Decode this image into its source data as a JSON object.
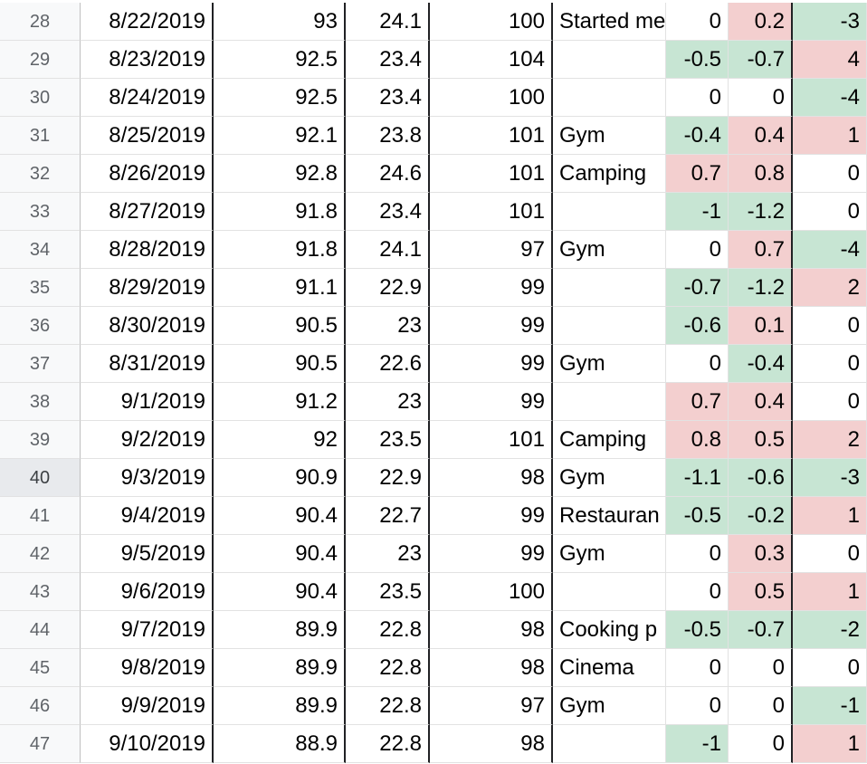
{
  "colors": {
    "positive": "#f3cfcf",
    "negative": "#c7e5d3"
  },
  "rows": [
    {
      "n": "28",
      "date": "8/22/2019",
      "a": "93",
      "b": "24.1",
      "c": "100",
      "note": "Started me",
      "d1": "0",
      "d2": "0.2",
      "d3": "-3"
    },
    {
      "n": "29",
      "date": "8/23/2019",
      "a": "92.5",
      "b": "23.4",
      "c": "104",
      "note": "",
      "d1": "-0.5",
      "d2": "-0.7",
      "d3": "4"
    },
    {
      "n": "30",
      "date": "8/24/2019",
      "a": "92.5",
      "b": "23.4",
      "c": "100",
      "note": "",
      "d1": "0",
      "d2": "0",
      "d3": "-4"
    },
    {
      "n": "31",
      "date": "8/25/2019",
      "a": "92.1",
      "b": "23.8",
      "c": "101",
      "note": "Gym",
      "d1": "-0.4",
      "d2": "0.4",
      "d3": "1"
    },
    {
      "n": "32",
      "date": "8/26/2019",
      "a": "92.8",
      "b": "24.6",
      "c": "101",
      "note": "Camping",
      "d1": "0.7",
      "d2": "0.8",
      "d3": "0"
    },
    {
      "n": "33",
      "date": "8/27/2019",
      "a": "91.8",
      "b": "23.4",
      "c": "101",
      "note": "",
      "d1": "-1",
      "d2": "-1.2",
      "d3": "0"
    },
    {
      "n": "34",
      "date": "8/28/2019",
      "a": "91.8",
      "b": "24.1",
      "c": "97",
      "note": "Gym",
      "d1": "0",
      "d2": "0.7",
      "d3": "-4"
    },
    {
      "n": "35",
      "date": "8/29/2019",
      "a": "91.1",
      "b": "22.9",
      "c": "99",
      "note": "",
      "d1": "-0.7",
      "d2": "-1.2",
      "d3": "2"
    },
    {
      "n": "36",
      "date": "8/30/2019",
      "a": "90.5",
      "b": "23",
      "c": "99",
      "note": "",
      "d1": "-0.6",
      "d2": "0.1",
      "d3": "0"
    },
    {
      "n": "37",
      "date": "8/31/2019",
      "a": "90.5",
      "b": "22.6",
      "c": "99",
      "note": "Gym",
      "d1": "0",
      "d2": "-0.4",
      "d3": "0"
    },
    {
      "n": "38",
      "date": "9/1/2019",
      "a": "91.2",
      "b": "23",
      "c": "99",
      "note": "",
      "d1": "0.7",
      "d2": "0.4",
      "d3": "0"
    },
    {
      "n": "39",
      "date": "9/2/2019",
      "a": "92",
      "b": "23.5",
      "c": "101",
      "note": "Camping",
      "d1": "0.8",
      "d2": "0.5",
      "d3": "2"
    },
    {
      "n": "40",
      "date": "9/3/2019",
      "a": "90.9",
      "b": "22.9",
      "c": "98",
      "note": "Gym",
      "d1": "-1.1",
      "d2": "-0.6",
      "d3": "-3"
    },
    {
      "n": "41",
      "date": "9/4/2019",
      "a": "90.4",
      "b": "22.7",
      "c": "99",
      "note": "Restauran",
      "d1": "-0.5",
      "d2": "-0.2",
      "d3": "1"
    },
    {
      "n": "42",
      "date": "9/5/2019",
      "a": "90.4",
      "b": "23",
      "c": "99",
      "note": "Gym",
      "d1": "0",
      "d2": "0.3",
      "d3": "0"
    },
    {
      "n": "43",
      "date": "9/6/2019",
      "a": "90.4",
      "b": "23.5",
      "c": "100",
      "note": "",
      "d1": "0",
      "d2": "0.5",
      "d3": "1"
    },
    {
      "n": "44",
      "date": "9/7/2019",
      "a": "89.9",
      "b": "22.8",
      "c": "98",
      "note": "Cooking p",
      "d1": "-0.5",
      "d2": "-0.7",
      "d3": "-2"
    },
    {
      "n": "45",
      "date": "9/8/2019",
      "a": "89.9",
      "b": "22.8",
      "c": "98",
      "note": "Cinema",
      "d1": "0",
      "d2": "0",
      "d3": "0"
    },
    {
      "n": "46",
      "date": "9/9/2019",
      "a": "89.9",
      "b": "22.8",
      "c": "97",
      "note": "Gym",
      "d1": "0",
      "d2": "0",
      "d3": "-1"
    },
    {
      "n": "47",
      "date": "9/10/2019",
      "a": "88.9",
      "b": "22.8",
      "c": "98",
      "note": "",
      "d1": "-1",
      "d2": "0",
      "d3": "1"
    }
  ]
}
